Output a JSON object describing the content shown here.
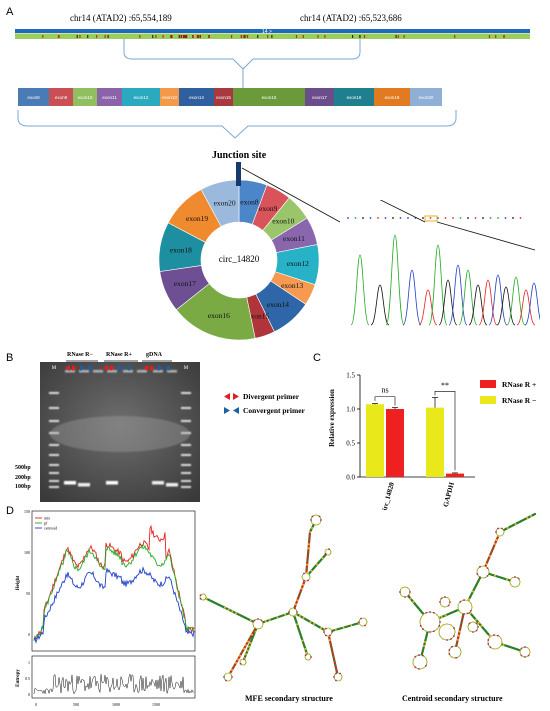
{
  "panels": {
    "a": "A",
    "b": "B",
    "c": "C",
    "d": "D"
  },
  "panelA": {
    "coord_left": "chr14 (ATAD2) :65,554,189",
    "coord_right": "chr14 (ATAD2) :65,523,686",
    "track_label": "14 >",
    "exons": [
      {
        "label": "exon8",
        "color": "#4a7bb5"
      },
      {
        "label": "exon9",
        "color": "#c94f55"
      },
      {
        "label": "exon10",
        "color": "#8fbf5e"
      },
      {
        "label": "exon11",
        "color": "#8a63a8"
      },
      {
        "label": "exon12",
        "color": "#2aa9bf"
      },
      {
        "label": "exon13",
        "color": "#f29a4a"
      },
      {
        "label": "exon14",
        "color": "#2f5f9e"
      },
      {
        "label": "exon15",
        "color": "#a83a3f"
      },
      {
        "label": "exon16",
        "color": "#6b9a3a"
      },
      {
        "label": "exon17",
        "color": "#6c4d8c"
      },
      {
        "label": "exon18",
        "color": "#1f7f8f"
      },
      {
        "label": "exon19",
        "color": "#e27a22"
      },
      {
        "label": "exon20",
        "color": "#8fafd6"
      }
    ],
    "junction_title": "Junction site",
    "circ_name": "circ_14820",
    "donut": [
      {
        "label": "exon8",
        "value": 4.2,
        "color": "#4a86c8"
      },
      {
        "label": "exon9",
        "value": 3.8,
        "color": "#d9535a"
      },
      {
        "label": "exon10",
        "value": 4.0,
        "color": "#9bc56a"
      },
      {
        "label": "exon11",
        "value": 4.2,
        "color": "#8a66ac"
      },
      {
        "label": "exon12",
        "value": 6.0,
        "color": "#27b2c8"
      },
      {
        "label": "exon13",
        "value": 3.2,
        "color": "#f59a50"
      },
      {
        "label": "exon14",
        "value": 6.2,
        "color": "#2f66a8"
      },
      {
        "label": "exon15",
        "value": 3.0,
        "color": "#b0353b"
      },
      {
        "label": "exon16",
        "value": 13.0,
        "color": "#7aaa44"
      },
      {
        "label": "exon17",
        "value": 6.2,
        "color": "#6f4f93"
      },
      {
        "label": "exon18",
        "value": 7.4,
        "color": "#1e8fa0"
      },
      {
        "label": "exon19",
        "value": 7.0,
        "color": "#f08a2e"
      },
      {
        "label": "exon20",
        "value": 5.8,
        "color": "#9ab9dc"
      }
    ]
  },
  "panelB": {
    "group_rnase_neg": "RNase R−",
    "group_rnase_pos": "RNase R+",
    "group_gdna": "gDNA",
    "marker_left": "M",
    "marker_right": "M",
    "legend_divergent": "Divergent primer",
    "legend_convergent": "Convergent primer",
    "size_500": "500bp",
    "size_200": "200bp",
    "size_100": "100bp",
    "divergent_color": "#e02020",
    "convergent_color": "#1a5fa8"
  },
  "chart_data": {
    "type": "bar",
    "categories": [
      "circ_14820",
      "GAPDH"
    ],
    "series": [
      {
        "name": "RNase R −",
        "values": [
          1.07,
          1.02
        ],
        "errors": [
          0.01,
          0.15
        ],
        "color": "#e8e81a"
      },
      {
        "name": "RNase R +",
        "values": [
          1.0,
          0.05
        ],
        "errors": [
          0.02,
          0.01
        ],
        "color": "#ee2020"
      }
    ],
    "ylabel": "Relative expression",
    "ylim": [
      0,
      1.5
    ],
    "yticks": [
      "0.0",
      "0.5",
      "1.0",
      "1.5"
    ],
    "annotations": [
      "ns",
      "**"
    ],
    "legend": "top-right"
  },
  "panelD": {
    "legend": [
      {
        "label": "mfe",
        "color": "#e82020"
      },
      {
        "label": "pf",
        "color": "#22aa22"
      },
      {
        "label": "centroid",
        "color": "#2040c8"
      }
    ],
    "ylabel_top": "Height",
    "ylabel_bottom": "Entropy",
    "yticks_top": [
      "0",
      "50",
      "100",
      "150"
    ],
    "yticks_bottom": [
      "0",
      "0.5",
      "1"
    ],
    "xticks": [
      "0",
      "500",
      "1000",
      "1500"
    ],
    "mfe_caption": "MFE secondary structure",
    "centroid_caption": "Centroid secondary structure"
  }
}
